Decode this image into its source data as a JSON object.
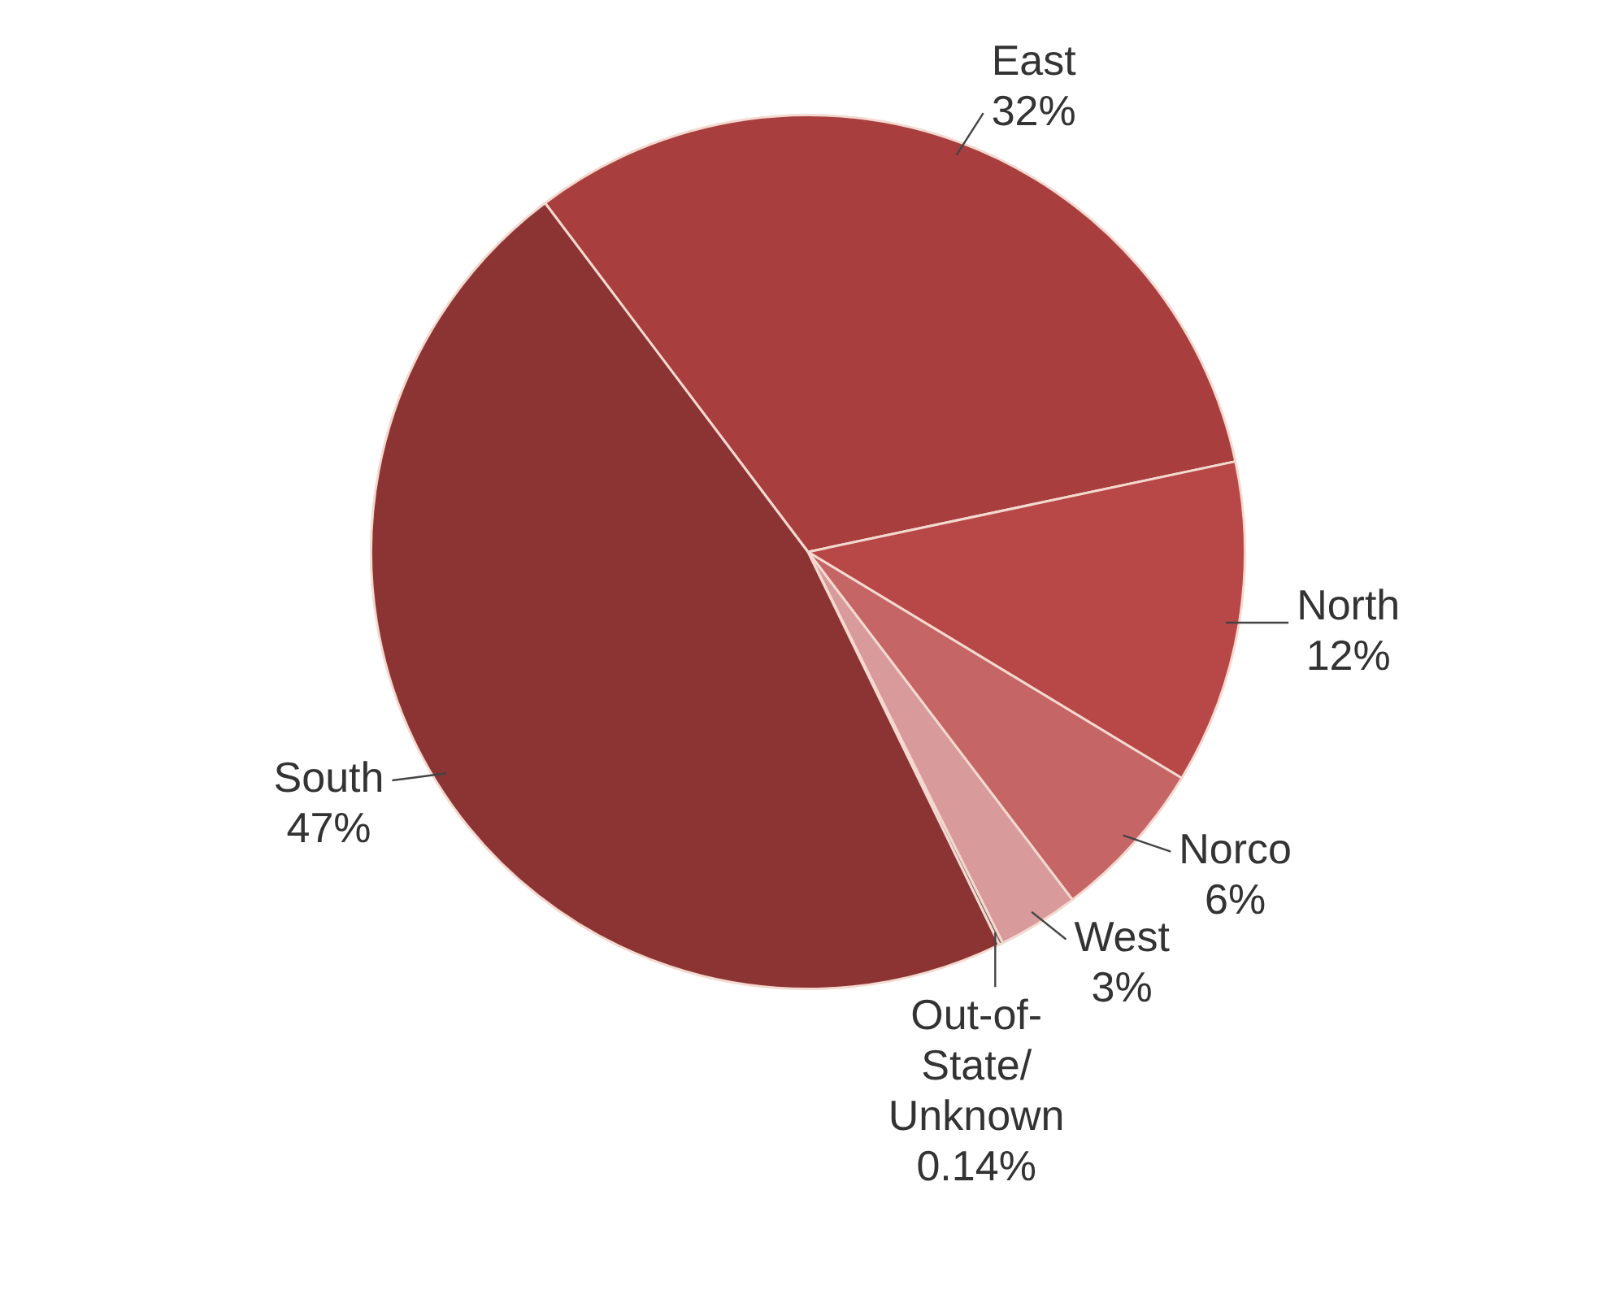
{
  "chart_data": {
    "type": "pie",
    "categories": [
      "East",
      "North",
      "Norco",
      "West",
      "Out-of-State/Unknown",
      "South"
    ],
    "values": [
      32,
      12,
      6,
      3,
      0.14,
      47
    ],
    "colors": [
      "#a83e3e",
      "#b84747",
      "#c56565",
      "#d89a9a",
      "#7a6262",
      "#8c3434"
    ],
    "value_labels": [
      "32%",
      "12%",
      "6%",
      "3%",
      "0.14%",
      "47%"
    ],
    "legend": false
  }
}
